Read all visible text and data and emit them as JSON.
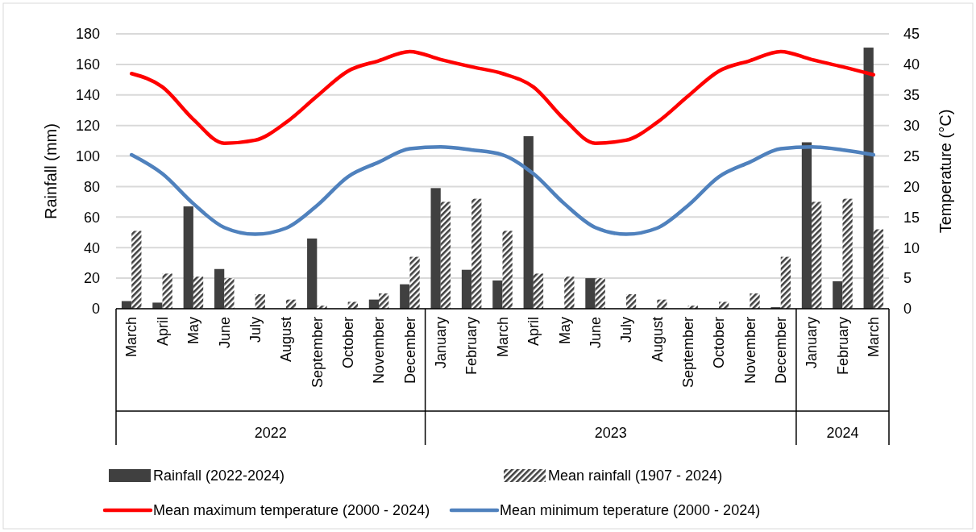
{
  "chart_data": {
    "type": "bar",
    "ylabel": "Rainfall (mm)",
    "y2label": "Temperature (°C)",
    "categories": [
      "March",
      "April",
      "May",
      "June",
      "July",
      "August",
      "September",
      "October",
      "November",
      "December",
      "January",
      "February",
      "March",
      "April",
      "May",
      "June",
      "July",
      "August",
      "September",
      "October",
      "November",
      "December",
      "January",
      "February",
      "March"
    ],
    "annotations": [
      "2022",
      "2023",
      "2024"
    ],
    "series": [
      {
        "name": "Rainfall (2022-2024)",
        "color": "#404040",
        "values": [
          5,
          4,
          67,
          26,
          0,
          0,
          46,
          0,
          6,
          16,
          79,
          25.5,
          18.5,
          113,
          0,
          20,
          0,
          0,
          0,
          0,
          0,
          1,
          109,
          18,
          171
        ]
      },
      {
        "name": "Mean rainfall (1907 - 2024)",
        "color": "#404040",
        "values": [
          51,
          23,
          21,
          20,
          9.5,
          6,
          2,
          4.5,
          10,
          34,
          70,
          72,
          51,
          23,
          21,
          20,
          9.5,
          6,
          2,
          4.5,
          10,
          34,
          70,
          72,
          52
        ]
      },
      {
        "name": "Mean maximum temperature (2000 - 2024)",
        "type": "line",
        "axis": "y2",
        "color": "#ff0000",
        "values": [
          38.5,
          36.3,
          31,
          27.1,
          27.6,
          30.5,
          34.8,
          38.9,
          40.6,
          42.1,
          40.8,
          39.6,
          38.5,
          36.3,
          31,
          27.1,
          27.6,
          30.5,
          34.8,
          38.9,
          40.6,
          42.1,
          40.8,
          39.6,
          38.3
        ]
      },
      {
        "name": "Mean minimum teperature (2000 - 2024)",
        "type": "line",
        "axis": "y2",
        "color": "#4f81bd",
        "values": [
          25.2,
          22.1,
          17.2,
          13.3,
          12.2,
          13.2,
          16.9,
          21.6,
          24,
          26.2,
          26.5,
          26,
          25.2,
          22.1,
          17.2,
          13.3,
          12.2,
          13.2,
          16.9,
          21.6,
          24,
          26.2,
          26.5,
          26,
          25.2
        ]
      }
    ],
    "ylim": [
      0,
      180
    ],
    "yticks": [
      0,
      20,
      40,
      60,
      80,
      100,
      120,
      140,
      160,
      180
    ],
    "y2lim": [
      0,
      45
    ],
    "y2ticks": [
      0,
      5,
      10,
      15,
      20,
      25,
      30,
      35,
      40,
      45
    ],
    "grid": "y",
    "legend": "bottom",
    "marker": "none",
    "line_style": "solid"
  }
}
